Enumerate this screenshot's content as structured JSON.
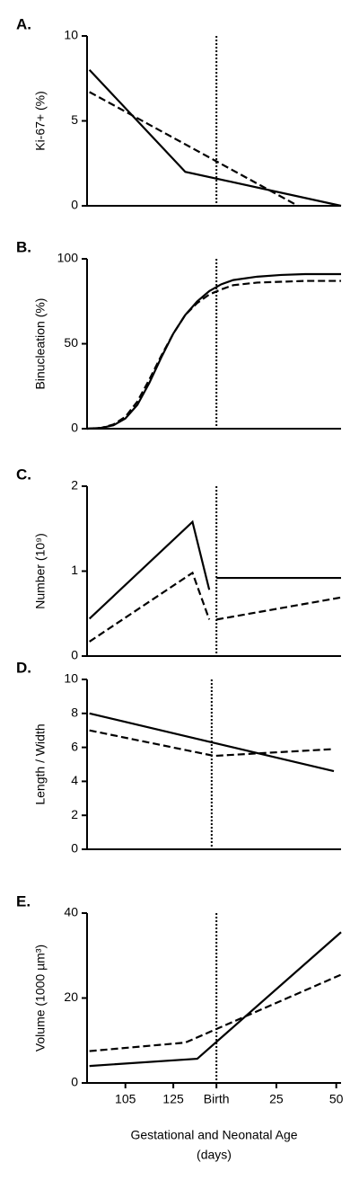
{
  "chart_data": [
    {
      "type": "line",
      "label": "A.",
      "ylabel": "Ki-67+ (%)",
      "xlim": [
        89,
        195
      ],
      "ylim": [
        0,
        10
      ],
      "yticks": [
        0,
        5,
        10
      ],
      "vline": 143,
      "series": [
        {
          "style": "solid",
          "color": "#000000",
          "x": [
            90,
            130,
            195
          ],
          "values": [
            8.0,
            2.0,
            0
          ]
        },
        {
          "style": "dashed",
          "color": "#000000",
          "x": [
            90,
            177
          ],
          "values": [
            6.7,
            0
          ]
        }
      ]
    },
    {
      "type": "line",
      "label": "B.",
      "ylabel": "Binucleation (%)",
      "xlim": [
        89,
        195
      ],
      "ylim": [
        0,
        100
      ],
      "yticks": [
        0,
        50,
        100
      ],
      "vline": 143,
      "series": [
        {
          "style": "solid",
          "color": "#000000",
          "x": [
            89,
            95,
            100,
            105,
            110,
            115,
            120,
            125,
            130,
            135,
            140,
            145,
            150,
            160,
            170,
            180,
            195
          ],
          "values": [
            0,
            0.5,
            2,
            6,
            14,
            27,
            42,
            56,
            67,
            75,
            81,
            85,
            87.5,
            89.5,
            90.5,
            91,
            91
          ]
        },
        {
          "style": "dashed",
          "color": "#000000",
          "x": [
            89,
            95,
            100,
            105,
            110,
            115,
            120,
            125,
            130,
            135,
            140,
            145,
            150,
            160,
            170,
            180,
            195
          ],
          "values": [
            0,
            0.5,
            2.5,
            7,
            16,
            29,
            43,
            56,
            67,
            74,
            79,
            82,
            84.5,
            86,
            86.5,
            87,
            87
          ]
        }
      ]
    },
    {
      "type": "line",
      "label": "C.",
      "ylabel": "Number (10⁹)",
      "xlim": [
        89,
        195
      ],
      "ylim": [
        0,
        2
      ],
      "yticks": [
        0,
        1,
        2
      ],
      "vline": 143,
      "series": [
        {
          "style": "solid",
          "color": "#000000",
          "x": [
            90,
            133,
            140,
            142,
            143,
            195
          ],
          "values": [
            0.44,
            1.58,
            0.78,
            null,
            0.92,
            0.92
          ]
        },
        {
          "style": "dashed",
          "color": "#000000",
          "x": [
            90,
            133,
            140,
            142,
            143,
            195
          ],
          "values": [
            0.17,
            0.98,
            0.43,
            null,
            0.43,
            0.69
          ]
        }
      ]
    },
    {
      "type": "line",
      "label": "D.",
      "ylabel": "Length / Width",
      "xlim": [
        89,
        195
      ],
      "ylim": [
        0,
        10
      ],
      "yticks": [
        0,
        2,
        4,
        6,
        8,
        10
      ],
      "vline": 141,
      "series": [
        {
          "style": "solid",
          "color": "#000000",
          "x": [
            90,
            192
          ],
          "values": [
            8.0,
            4.6
          ]
        },
        {
          "style": "dashed",
          "color": "#000000",
          "x": [
            90,
            142,
            192
          ],
          "values": [
            7.0,
            5.5,
            5.9
          ]
        }
      ]
    },
    {
      "type": "line",
      "label": "E.",
      "ylabel": "Volume (1000 µm³)",
      "xlim": [
        89,
        195
      ],
      "ylim": [
        0,
        40
      ],
      "yticks": [
        0,
        20,
        40
      ],
      "vline": 143,
      "xticks": [
        105,
        125,
        {
          "value": 143,
          "label": "Birth"
        },
        {
          "value": 168,
          "label": "25"
        },
        {
          "value": 193,
          "label": "50"
        }
      ],
      "xlabel": [
        "Gestational and Neonatal Age",
        "(days)"
      ],
      "series": [
        {
          "style": "solid",
          "color": "#000000",
          "x": [
            90,
            135,
            195
          ],
          "values": [
            4.0,
            5.7,
            35.5
          ]
        },
        {
          "style": "dashed",
          "color": "#000000",
          "x": [
            90,
            130,
            195
          ],
          "values": [
            7.5,
            9.5,
            25.5
          ]
        }
      ]
    }
  ]
}
